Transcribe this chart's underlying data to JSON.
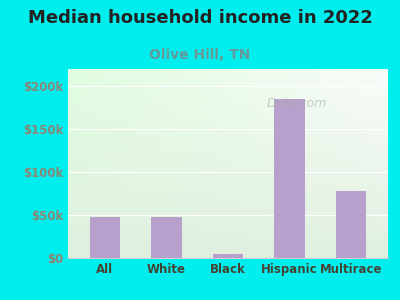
{
  "title": "Median household income in 2022",
  "subtitle": "Olive Hill, TN",
  "categories": [
    "All",
    "White",
    "Black",
    "Hispanic",
    "Multirace"
  ],
  "values": [
    48000,
    48000,
    5000,
    185000,
    78000
  ],
  "bar_color": "#b8a0cc",
  "title_fontsize": 13,
  "subtitle_fontsize": 10,
  "title_color": "#222222",
  "subtitle_color": "#669999",
  "background_outer": "#00eeee",
  "tick_color": "#888877",
  "xlabel_color": "#444433",
  "ylim": [
    0,
    220000
  ],
  "yticks": [
    0,
    50000,
    100000,
    150000,
    200000
  ],
  "ytick_labels": [
    "$0",
    "$50k",
    "$100k",
    "$150k",
    "$200k"
  ],
  "watermark": "Data.com",
  "gradient_top": "#e8f5e0",
  "gradient_bottom": "#f8fff4"
}
